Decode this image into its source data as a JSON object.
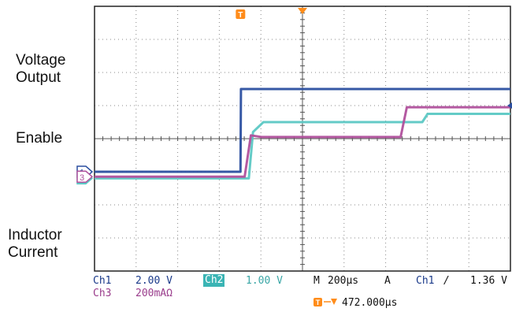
{
  "chart_data": {
    "type": "line",
    "x_unit": "µs",
    "x_range": [
      -472,
      1528
    ],
    "divisions": {
      "x": 10,
      "y": 8
    },
    "grid": true,
    "trigger_marker": "T",
    "channel_markers": [
      "1",
      "2",
      "3"
    ],
    "labels": {
      "voltage": "Voltage Output",
      "voltage_lines": [
        "Voltage",
        "Output"
      ],
      "enable": "Enable",
      "inductor": "Inductor Current",
      "inductor_lines": [
        "Inductor",
        "Current"
      ]
    },
    "series": [
      {
        "name": "Voltage Output",
        "channel": "1",
        "color": "#2b4fa0",
        "y_div": [
          -1.0,
          -1.0,
          1.5,
          1.5
        ],
        "x": [
          -472,
          230,
          232,
          1528
        ]
      },
      {
        "name": "Enable",
        "channel": "2",
        "color": "#5cc8c4",
        "y_div": [
          -1.2,
          -1.2,
          0.2,
          0.5,
          0.5,
          0.75,
          0.75
        ],
        "x": [
          -472,
          270,
          290,
          340,
          1104,
          1130,
          1528
        ]
      },
      {
        "name": "Inductor Current",
        "channel": "3",
        "color": "#b0509c",
        "y_div": [
          -1.15,
          -1.15,
          0.1,
          0.05,
          0.05,
          0.05,
          0.95,
          0.95
        ],
        "x": [
          -472,
          250,
          280,
          330,
          790,
          1000,
          1030,
          1528
        ]
      }
    ],
    "status": {
      "ch1_name": "Ch1",
      "ch1_scale": "2.00 V",
      "ch2_name": "Ch2",
      "ch2_scale": "1.00 V",
      "ch3_name": "Ch3",
      "ch3_scale": "200mAΩ",
      "m_label": "M",
      "m_scale": "200µs",
      "a_label": "A",
      "trig_src": "Ch1",
      "trig_slope": "/",
      "trig_level": "1.36 V",
      "delay": "472.000µs"
    },
    "colors": {
      "grid": "#888888",
      "frame": "#222222",
      "status": "#1a3a8a",
      "ch2_bg": "#3ab4b4",
      "ch3_text": "#9a3d8c",
      "trigger": "#ff8c1a"
    }
  }
}
